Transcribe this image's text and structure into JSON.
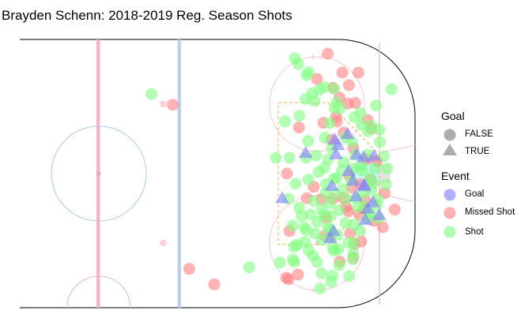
{
  "chart_data": {
    "type": "scatter",
    "title": "Brayden Schenn: 2018-2019 Reg. Season Shots",
    "xlabel": "",
    "ylabel": "",
    "xlim": [
      0,
      100
    ],
    "ylim": [
      -42.5,
      42.5
    ],
    "grid": false,
    "legend_position": "right",
    "legends": [
      {
        "title": "Goal",
        "entries": [
          {
            "label": "FALSE",
            "shape": "circle"
          },
          {
            "label": "TRUE",
            "shape": "triangle"
          }
        ]
      },
      {
        "title": "Event",
        "entries": [
          {
            "label": "Goal",
            "color": "#7b7bff"
          },
          {
            "label": "Missed Shot",
            "color": "#ff7b7b"
          },
          {
            "label": "Shot",
            "color": "#7bff7b"
          }
        ]
      }
    ],
    "series": [
      {
        "name": "Missed Shot",
        "shape": "circle",
        "color": "#ff8080",
        "points": [
          [
            72.4,
            38.0
          ],
          [
            77.0,
            32.0
          ],
          [
            82.1,
            32.0
          ],
          [
            78.8,
            22.2
          ],
          [
            71.0,
            16.1
          ],
          [
            63.3,
            14.6
          ],
          [
            59.5,
            0.0
          ],
          [
            77.4,
            -7.7
          ],
          [
            71.5,
            -19.7
          ],
          [
            80.5,
            -26.7
          ],
          [
            59.3,
            -33.0
          ],
          [
            36.5,
            -35.1
          ],
          [
            28.6,
            -30.2
          ],
          [
            23.4,
            21.8
          ],
          [
            79.5,
            -19.0
          ],
          [
            80.5,
            8.0
          ],
          [
            86.2,
            14.2
          ],
          [
            93.6,
            -11.4
          ],
          [
            90.4,
            -6.2
          ],
          [
            84.4,
            -8.6
          ],
          [
            78.2,
            -10.6
          ],
          [
            80.0,
            -4.4
          ],
          [
            84.7,
            4.6
          ],
          [
            77.4,
            13.0
          ],
          [
            73.5,
            10.7
          ],
          [
            76.1,
            24.1
          ],
          [
            79.1,
            28.0
          ],
          [
            81.1,
            22.4
          ],
          [
            85.0,
            17.0
          ],
          [
            74.0,
            -8.0
          ],
          [
            79.0,
            -12.0
          ],
          [
            83.0,
            -21.5
          ],
          [
            68.0,
            -4.2
          ],
          [
            60.3,
            -18.2
          ],
          [
            74.0,
            27.2
          ],
          [
            87.0,
            -15.0
          ],
          [
            88.0,
            4.0
          ],
          [
            75.0,
            18.0
          ],
          [
            72.0,
            -14.0
          ],
          [
            86.0,
            -2.0
          ],
          [
            70.3,
            -8.1
          ],
          [
            65.8,
            -7.8
          ],
          [
            82.7,
            -3.4
          ],
          [
            80.8,
            -22.4
          ],
          [
            76.2,
            -27.9
          ],
          [
            60.0,
            -33.5
          ],
          [
            69.0,
            30.0
          ],
          [
            82.5,
            -13.0
          ],
          [
            89.8,
            -17.0
          ],
          [
            63.0,
            -32.0
          ],
          [
            75.3,
            16.5
          ],
          [
            79.1,
            -0.5
          ],
          [
            84.1,
            -11.3
          ]
        ]
      },
      {
        "name": "Shot",
        "shape": "circle",
        "color": "#80ff80",
        "points": [
          [
            62.0,
            36.5
          ],
          [
            67.4,
            25.4
          ],
          [
            63.1,
            34.7
          ],
          [
            65.7,
            31.2
          ],
          [
            66.3,
            32.1
          ],
          [
            69.8,
            26.5
          ],
          [
            71.3,
            27.4
          ],
          [
            74.4,
            26.9
          ],
          [
            75.3,
            22.6
          ],
          [
            76.3,
            20.6
          ],
          [
            80.9,
            17.9
          ],
          [
            85.1,
            13.4
          ],
          [
            88.8,
            13.9
          ],
          [
            88.9,
            10.0
          ],
          [
            90.2,
            5.5
          ],
          [
            87.4,
            1.7
          ],
          [
            83.2,
            1.0
          ],
          [
            76.9,
            1.0
          ],
          [
            75.2,
            -1.5
          ],
          [
            78.3,
            -8.0
          ],
          [
            74.7,
            -6.5
          ],
          [
            73.3,
            -13.5
          ],
          [
            72.5,
            -17.1
          ],
          [
            70.6,
            -21.0
          ],
          [
            65.7,
            -18.0
          ],
          [
            75.7,
            -24.0
          ],
          [
            73.9,
            -32.4
          ],
          [
            80.3,
            -27.2
          ],
          [
            79.2,
            -32.5
          ],
          [
            73.5,
            -34.3
          ],
          [
            70.5,
            -31.6
          ],
          [
            64.1,
            -13.5
          ],
          [
            62.2,
            -3.2
          ],
          [
            66.3,
            -1.9
          ],
          [
            68.0,
            -8.7
          ],
          [
            71.7,
            -6.2
          ],
          [
            69.1,
            -15.3
          ],
          [
            63.4,
            18.3
          ],
          [
            66.2,
            10.3
          ],
          [
            65.6,
            5.0
          ],
          [
            68.7,
            5.7
          ],
          [
            71.3,
            1.8
          ],
          [
            73.7,
            8.0
          ],
          [
            71.5,
            11.4
          ],
          [
            68.2,
            23.0
          ],
          [
            65.4,
            23.6
          ],
          [
            80.4,
            -25.3
          ],
          [
            81.4,
            -7.8
          ],
          [
            84.3,
            -10.4
          ],
          [
            86.7,
            -3.0
          ],
          [
            83.7,
            -6.2
          ],
          [
            85.1,
            6.0
          ],
          [
            80.1,
            10.0
          ],
          [
            83.1,
            15.5
          ],
          [
            74.4,
            -24.5
          ],
          [
            78.9,
            -21.9
          ],
          [
            78.0,
            -15.7
          ],
          [
            76.0,
            -11.6
          ],
          [
            71.9,
            -3.4
          ],
          [
            70.5,
            -11.3
          ],
          [
            63.4,
            -10.8
          ],
          [
            62.7,
            -22.5
          ],
          [
            61.4,
            -27.2
          ],
          [
            73.3,
            -17.8
          ],
          [
            73.3,
            -20.1
          ],
          [
            67.7,
            -26.0
          ],
          [
            85.7,
            -12.6
          ],
          [
            70.0,
            -36.4
          ],
          [
            60.3,
            5.0
          ],
          [
            56.0,
            5.0
          ],
          [
            58.9,
            16.5
          ],
          [
            47.6,
            -29.7
          ],
          [
            57.3,
            -28.2
          ],
          [
            61.8,
            -28.0
          ],
          [
            65.2,
            -21.7
          ],
          [
            61.3,
            -16.5
          ],
          [
            91.2,
            1.6
          ],
          [
            88.3,
            -8.2
          ],
          [
            85.7,
            -1.5
          ],
          [
            88.3,
            -14.0
          ],
          [
            90.8,
            -3.5
          ],
          [
            82.6,
            -18.2
          ],
          [
            79.7,
            -2.1
          ],
          [
            80.3,
            1.6
          ],
          [
            77.4,
            3.7
          ],
          [
            77.2,
            -4.9
          ],
          [
            74.3,
            -1.7
          ],
          [
            73.1,
            -9.4
          ],
          [
            71.1,
            -13.1
          ],
          [
            80.8,
            -16.2
          ],
          [
            80.6,
            -22.0
          ],
          [
            16.7,
            25.2
          ],
          [
            66.4,
            -24.3
          ],
          [
            61.8,
            -23.2
          ],
          [
            92.6,
            26.7
          ],
          [
            87.7,
            21.6
          ],
          [
            86.3,
            15.1
          ],
          [
            82.8,
            19.2
          ],
          [
            78.0,
            11.5
          ],
          [
            73.0,
            16.0
          ],
          [
            72.5,
            4.5
          ],
          [
            69.5,
            0.5
          ],
          [
            81.1,
            5.9
          ],
          [
            83.0,
            2.5
          ],
          [
            86.2,
            -5.2
          ],
          [
            82.0,
            -10.5
          ],
          [
            75.5,
            -19.5
          ],
          [
            74.0,
            -23.5
          ],
          [
            68.5,
            -19.0
          ],
          [
            67.0,
            -13.0
          ],
          [
            65.0,
            -17.0
          ],
          [
            60.0,
            -8.0
          ],
          [
            74.5,
            20.8
          ],
          [
            69.0,
            -28.0
          ],
          [
            76.0,
            -29.0
          ],
          [
            88.0,
            -10.0
          ],
          [
            84.8,
            -14.2
          ]
        ]
      },
      {
        "name": "Goal",
        "shape": "triangle",
        "color": "#8080ff",
        "points": [
          [
            78.7,
            12.5
          ],
          [
            75.6,
            9.0
          ],
          [
            74.6,
            10.8
          ],
          [
            75.0,
            6.1
          ],
          [
            81.5,
            6.0
          ],
          [
            83.7,
            5.2
          ],
          [
            87.0,
            5.6
          ],
          [
            80.4,
            -2.2
          ],
          [
            83.9,
            -3.6
          ],
          [
            86.7,
            -9.1
          ],
          [
            84.3,
            -14.7
          ],
          [
            74.2,
            -18.2
          ],
          [
            73.2,
            -20.5
          ],
          [
            58.0,
            -7.8
          ],
          [
            85.0,
            -11.1
          ],
          [
            88.7,
            -13.2
          ],
          [
            73.7,
            -3.9
          ],
          [
            84.0,
            -4.0
          ],
          [
            65.4,
            6.5
          ],
          [
            81.3,
            -7.2
          ],
          [
            79.0,
            0.8
          ]
        ]
      }
    ]
  }
}
